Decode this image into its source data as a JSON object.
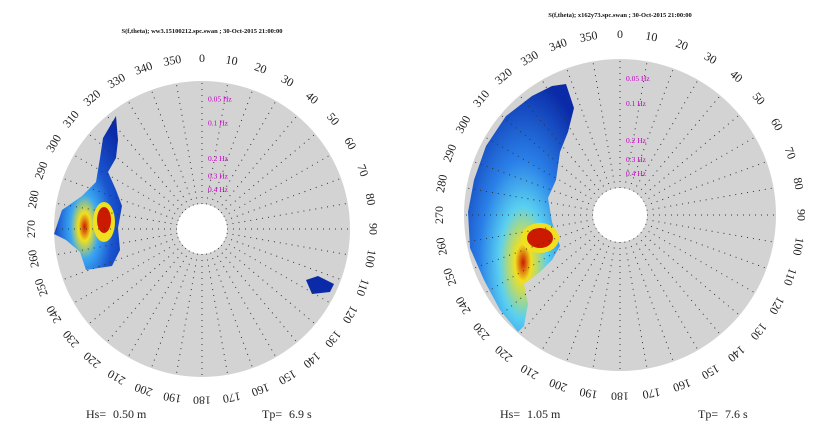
{
  "chart_data": [
    {
      "type": "polar-spectrum",
      "title": "S(f,theta); ww3.15100212.spc.swan ; 30-Oct-2015 21:00:00",
      "angle_ticks": [
        "0",
        "10",
        "20",
        "30",
        "40",
        "50",
        "60",
        "70",
        "80",
        "90",
        "100",
        "110",
        "120",
        "130",
        "140",
        "150",
        "160",
        "170",
        "180",
        "190",
        "200",
        "210",
        "220",
        "230",
        "240",
        "250",
        "260",
        "270",
        "280",
        "290",
        "300",
        "310",
        "320",
        "330",
        "340",
        "350"
      ],
      "ring_labels": [
        "0.05 Hz",
        "0.1 Hz",
        "0.2 Hz",
        "0.3 Hz",
        "0.4 Hz"
      ],
      "hs_label": "Hs=",
      "hs_value": "0.50 m",
      "tp_label": "Tp=",
      "tp_value": "6.9 s",
      "energy_direction_range_deg": [
        270,
        325
      ],
      "peak_direction_deg": 272,
      "secondary_direction_deg": 112,
      "colors": {
        "background": "#d3d3d3",
        "low": "#0a2aa8",
        "mid": "#3aa7f2",
        "high": "#f0e020",
        "peak": "#cc1a00"
      }
    },
    {
      "type": "polar-spectrum",
      "title": "S(f,theta); x162y73.spc.swan ; 30-Oct-2015 21:00:00",
      "angle_ticks": [
        "0",
        "10",
        "20",
        "30",
        "40",
        "50",
        "60",
        "70",
        "80",
        "90",
        "100",
        "110",
        "120",
        "130",
        "140",
        "150",
        "160",
        "170",
        "180",
        "190",
        "200",
        "210",
        "220",
        "230",
        "240",
        "250",
        "260",
        "270",
        "280",
        "290",
        "300",
        "310",
        "320",
        "330",
        "340",
        "350"
      ],
      "ring_labels": [
        "0.05 Hz",
        "0.1 Hz",
        "0.2 Hz",
        "0.3 Hz",
        "0.4 Hz"
      ],
      "hs_label": "Hs=",
      "hs_value": "1.05 m",
      "tp_label": "Tp=",
      "tp_value": "7.6 s",
      "energy_direction_range_deg": [
        225,
        340
      ],
      "peak_direction_deg": 265,
      "colors": {
        "background": "#d3d3d3",
        "low": "#0a2aa8",
        "mid": "#3aa7f2",
        "high": "#f0e020",
        "peak": "#cc1a00"
      }
    }
  ]
}
